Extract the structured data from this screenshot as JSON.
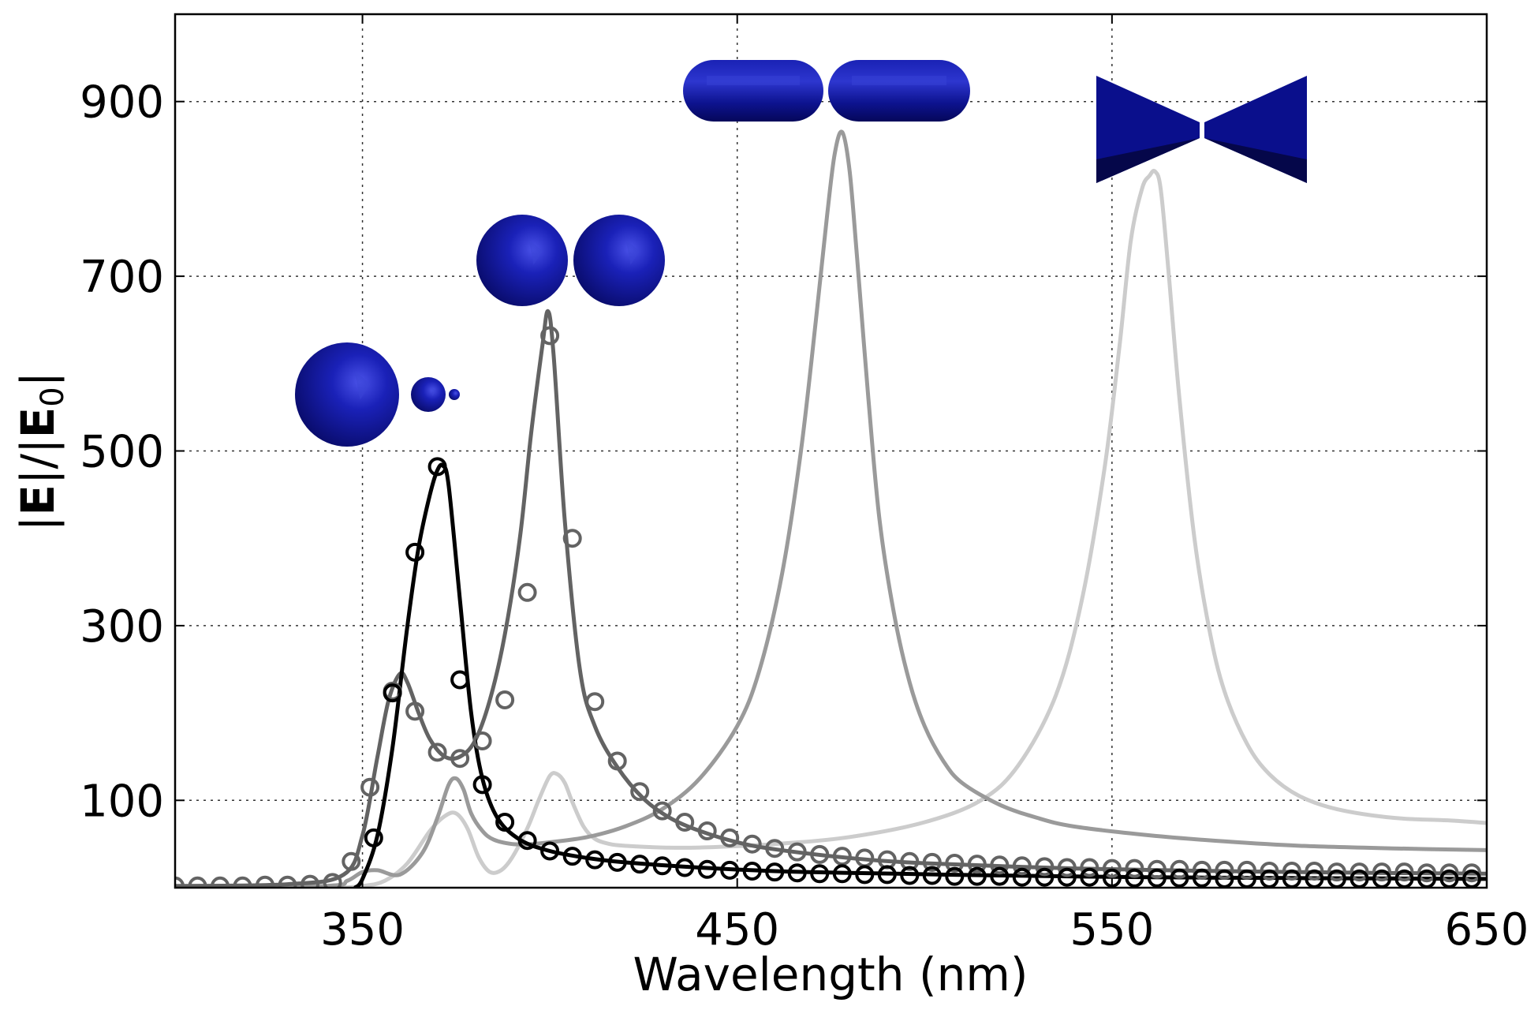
{
  "chart_data": {
    "type": "line",
    "title": "",
    "xlabel": "Wavelength (nm)",
    "ylabel_parts": [
      "|",
      "E",
      "|/|",
      "E",
      "0",
      "|"
    ],
    "xlim": [
      300,
      650
    ],
    "ylim": [
      0,
      1000
    ],
    "xticks": [
      350,
      450,
      550,
      650
    ],
    "yticks": [
      100,
      300,
      500,
      700,
      900
    ],
    "grid": true,
    "legend": "none",
    "series": [
      {
        "color": "#000000",
        "x": [
          348,
          350,
          354,
          358,
          362,
          365,
          368,
          370,
          371.5,
          373,
          376,
          379,
          382,
          386,
          392,
          400,
          410,
          420,
          440,
          460,
          480,
          520,
          560,
          600,
          650
        ],
        "y": [
          0,
          10,
          60,
          160,
          300,
          390,
          450,
          478,
          483,
          460,
          330,
          200,
          125,
          80,
          55,
          42,
          34,
          29,
          23,
          19,
          17,
          14,
          12,
          11,
          10
        ],
        "markers": {
          "x": [
            353,
            358,
            364,
            370,
            376,
            382,
            388,
            394,
            400,
            406,
            412,
            418,
            424,
            430,
            436,
            442,
            448,
            454,
            460,
            466,
            472,
            478,
            484,
            490,
            496,
            502,
            508,
            514,
            520,
            526,
            532,
            538,
            544,
            550,
            556,
            562,
            568,
            574,
            580,
            586,
            592,
            598,
            604,
            610,
            616,
            622,
            628,
            634,
            640,
            646
          ],
          "y": [
            57,
            223,
            384,
            482,
            238,
            118,
            75,
            54,
            42,
            36,
            32,
            29,
            27,
            25,
            23,
            21,
            20,
            19,
            18,
            17,
            16,
            16,
            15,
            15,
            14,
            14,
            13,
            13,
            13,
            12,
            12,
            12,
            12,
            11,
            11,
            11,
            11,
            11,
            10,
            10,
            10,
            10,
            10,
            10,
            10,
            10,
            10,
            10,
            10,
            10
          ]
        }
      },
      {
        "color": "#636363",
        "x": [
          300,
          330,
          345,
          350,
          354,
          357,
          360,
          362,
          365,
          368,
          372,
          376,
          380,
          384,
          388,
          392,
          395,
          398,
          399.5,
          401,
          404,
          408,
          412,
          418,
          425,
          432,
          440,
          450,
          460,
          480,
          500,
          540,
          580,
          620,
          650
        ],
        "y": [
          2,
          4,
          15,
          60,
          150,
          215,
          245,
          235,
          200,
          170,
          150,
          150,
          168,
          215,
          290,
          400,
          520,
          620,
          660,
          610,
          420,
          250,
          185,
          138,
          102,
          80,
          65,
          52,
          44,
          34,
          28,
          22,
          19,
          17,
          16
        ],
        "markers": {
          "x": [
            300,
            306,
            312,
            318,
            324,
            330,
            336,
            342,
            347,
            352,
            358,
            364,
            370,
            376,
            382,
            388,
            394,
            400,
            406,
            412,
            418,
            424,
            430,
            436,
            442,
            448,
            454,
            460,
            466,
            472,
            478,
            484,
            490,
            496,
            502,
            508,
            514,
            520,
            526,
            532,
            538,
            544,
            550,
            556,
            562,
            568,
            574,
            580,
            586,
            592,
            598,
            604,
            610,
            616,
            622,
            628,
            634,
            640,
            646
          ],
          "y": [
            2,
            2,
            2,
            2,
            3,
            3,
            4,
            6,
            30,
            115,
            225,
            202,
            155,
            148,
            168,
            215,
            338,
            632,
            400,
            213,
            145,
            110,
            88,
            75,
            65,
            57,
            50,
            45,
            41,
            38,
            36,
            34,
            32,
            30,
            29,
            28,
            27,
            26,
            25,
            24,
            23,
            23,
            22,
            22,
            21,
            21,
            20,
            20,
            20,
            19,
            19,
            19,
            18,
            18,
            18,
            18,
            17,
            17,
            17
          ]
        }
      },
      {
        "color": "#9a9a9a",
        "x": [
          300,
          340,
          346,
          350,
          354,
          360,
          366,
          370,
          373,
          375,
          377,
          379,
          382,
          385,
          390,
          395,
          400,
          410,
          420,
          430,
          440,
          450,
          456,
          462,
          467,
          471,
          474,
          476,
          478,
          480,
          482,
          485,
          488,
          492,
          496,
          500,
          505,
          510,
          520,
          530,
          540,
          560,
          580,
          600,
          625,
          650
        ],
        "y": [
          0,
          2,
          8,
          18,
          20,
          15,
          40,
          80,
          118,
          125,
          112,
          85,
          65,
          55,
          50,
          50,
          52,
          58,
          70,
          90,
          125,
          185,
          250,
          360,
          500,
          650,
          770,
          840,
          865,
          820,
          720,
          560,
          420,
          310,
          235,
          185,
          145,
          120,
          95,
          80,
          70,
          60,
          53,
          48,
          45,
          43
        ]
      },
      {
        "color": "#cccccc",
        "x": [
          300,
          340,
          350,
          356,
          362,
          368,
          372,
          375,
          378,
          381,
          384,
          387,
          390,
          394,
          397,
          400,
          402,
          404,
          406,
          409,
          412,
          416,
          420,
          430,
          440,
          460,
          480,
          500,
          515,
          525,
          535,
          542,
          548,
          552,
          555,
          558,
          560,
          561.5,
          563,
          565,
          568,
          572,
          576,
          580,
          586,
          592,
          600,
          610,
          625,
          640,
          650
        ],
        "y": [
          0,
          0,
          2,
          8,
          28,
          65,
          82,
          85,
          68,
          35,
          18,
          20,
          35,
          68,
          100,
          128,
          130,
          120,
          98,
          70,
          56,
          50,
          48,
          46,
          46,
          50,
          58,
          75,
          100,
          140,
          220,
          330,
          480,
          620,
          740,
          800,
          815,
          820,
          800,
          710,
          560,
          400,
          295,
          225,
          165,
          130,
          105,
          90,
          80,
          77,
          74
        ]
      }
    ],
    "insets": [
      {
        "kind": "graded-spheres",
        "near_peak_x": 371
      },
      {
        "kind": "sphere-dimer",
        "near_peak_x": 400
      },
      {
        "kind": "rod-dimer",
        "near_peak_x": 478
      },
      {
        "kind": "bowtie",
        "near_peak_x": 561
      }
    ],
    "colors": {
      "inset_blue": "#0a0f8c",
      "inset_highlight": "#3a44d6",
      "inset_shadow": "#05074a"
    }
  }
}
